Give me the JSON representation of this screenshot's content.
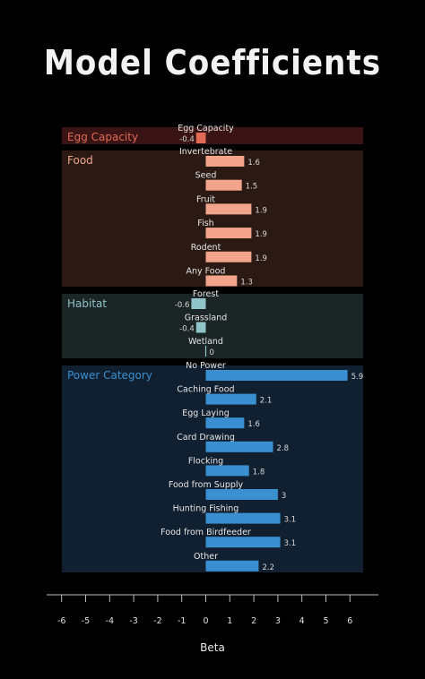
{
  "chart_data": {
    "type": "bar",
    "orientation": "horizontal",
    "title": "Model Coefficients",
    "xlabel": "Beta",
    "xlim": [
      -6,
      6
    ],
    "xticks": [
      -6,
      -5,
      -4,
      -3,
      -2,
      -1,
      0,
      1,
      2,
      3,
      4,
      5,
      6
    ],
    "groups": [
      {
        "name": "Egg Capacity",
        "color": "#e06a55",
        "bg": "#3a1414",
        "label_color": "#e06a55",
        "items": [
          {
            "label": "Egg Capacity",
            "value": -0.4,
            "display": "-0.4"
          }
        ]
      },
      {
        "name": "Food",
        "color": "#f2a58a",
        "bg": "#2b1a14",
        "label_color": "#f2a58a",
        "items": [
          {
            "label": "Invertebrate",
            "value": 1.6,
            "display": "1.6"
          },
          {
            "label": "Seed",
            "value": 1.5,
            "display": "1.5"
          },
          {
            "label": "Fruit",
            "value": 1.9,
            "display": "1.9"
          },
          {
            "label": "Fish",
            "value": 1.9,
            "display": "1.9"
          },
          {
            "label": "Rodent",
            "value": 1.9,
            "display": "1.9"
          },
          {
            "label": "Any Food",
            "value": 1.3,
            "display": "1.3"
          }
        ]
      },
      {
        "name": "Habitat",
        "color": "#8fc4c8",
        "bg": "#1b2526",
        "label_color": "#8fc4c8",
        "items": [
          {
            "label": "Forest",
            "value": -0.6,
            "display": "-0.6"
          },
          {
            "label": "Grassland",
            "value": -0.4,
            "display": "-0.4"
          },
          {
            "label": "Wetland",
            "value": 0.0,
            "display": "0"
          }
        ]
      },
      {
        "name": "Power Category",
        "color": "#3a8fd0",
        "bg": "#112030",
        "label_color": "#3a8fd0",
        "items": [
          {
            "label": "No Power",
            "value": 5.9,
            "display": "5.9"
          },
          {
            "label": "Caching Food",
            "value": 2.1,
            "display": "2.1"
          },
          {
            "label": "Egg Laying",
            "value": 1.6,
            "display": "1.6"
          },
          {
            "label": "Card Drawing",
            "value": 2.8,
            "display": "2.8"
          },
          {
            "label": "Flocking",
            "value": 1.8,
            "display": "1.8"
          },
          {
            "label": "Food from Supply",
            "value": 3.0,
            "display": "3"
          },
          {
            "label": "Hunting Fishing",
            "value": 3.1,
            "display": "3.1"
          },
          {
            "label": "Food from Birdfeeder",
            "value": 3.1,
            "display": "3.1"
          },
          {
            "label": "Other",
            "value": 2.2,
            "display": "2.2"
          }
        ]
      }
    ],
    "background": "#000000",
    "grid": false
  }
}
